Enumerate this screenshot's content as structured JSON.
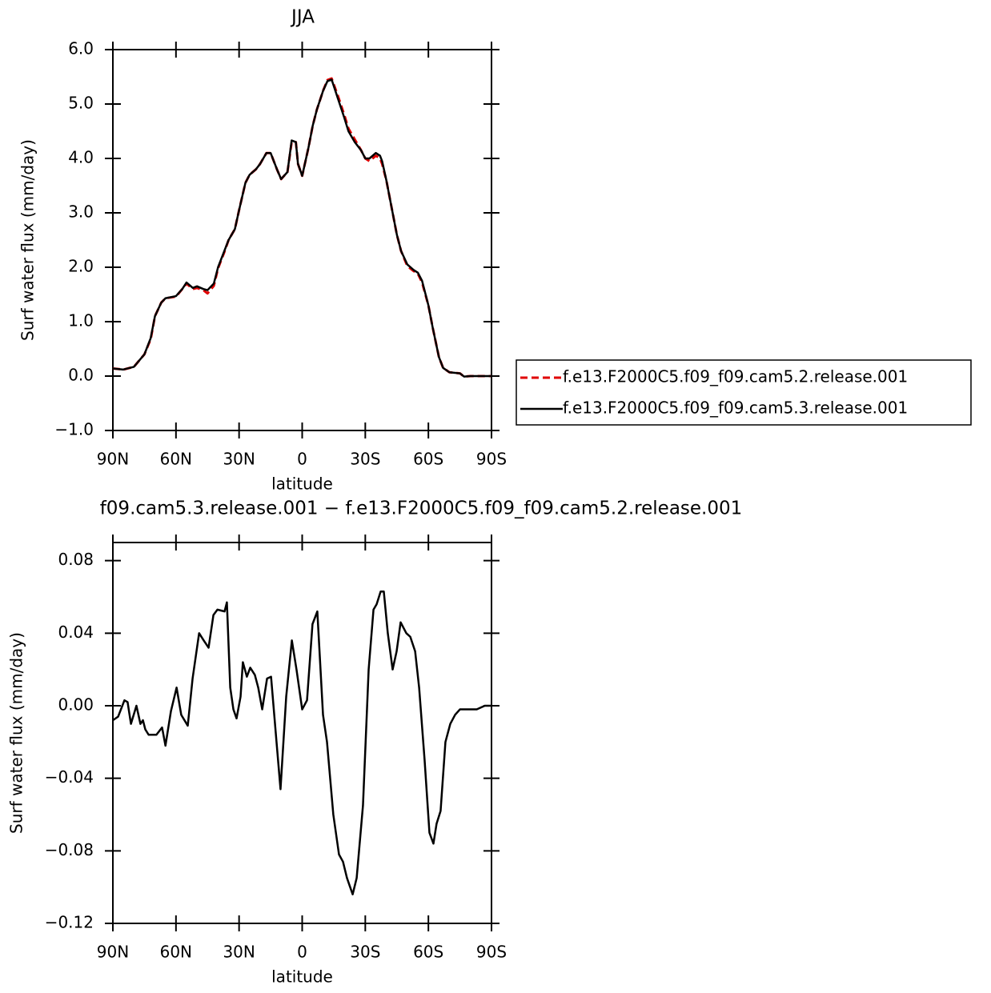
{
  "chart_data": [
    {
      "type": "line",
      "title": "JJA",
      "xlabel": "latitude",
      "ylabel": "Surf water flux (mm/day)",
      "x": [
        90,
        85,
        80,
        75,
        72,
        70,
        67,
        65,
        60,
        57,
        55,
        52,
        50,
        47,
        45,
        42,
        40,
        37,
        35,
        32,
        30,
        27,
        25,
        22,
        20,
        17,
        15,
        12,
        10,
        7,
        5,
        3,
        2,
        0,
        -3,
        -5,
        -7,
        -10,
        -12,
        -14,
        -17,
        -20,
        -22,
        -25,
        -28,
        -30,
        -32,
        -35,
        -37,
        -38,
        -40,
        -42,
        -45,
        -47,
        -50,
        -53,
        -55,
        -57,
        -60,
        -62,
        -65,
        -67,
        -70,
        -75,
        -77,
        -80,
        -85,
        -90
      ],
      "series": [
        {
          "name": "f.e13.F2000C5.f09_f09.cam5.2.release.001",
          "color": "#e00000",
          "dashed": true,
          "values": [
            0.14,
            0.12,
            0.17,
            0.4,
            0.68,
            1.1,
            1.35,
            1.43,
            1.46,
            1.6,
            1.7,
            1.6,
            1.62,
            1.58,
            1.52,
            1.66,
            1.98,
            2.28,
            2.5,
            2.7,
            3.05,
            3.55,
            3.7,
            3.8,
            3.9,
            4.1,
            4.1,
            3.8,
            3.62,
            3.75,
            4.3,
            4.3,
            3.9,
            3.68,
            4.2,
            4.6,
            4.9,
            5.25,
            5.44,
            5.47,
            5.15,
            4.8,
            4.55,
            4.35,
            4.15,
            4.0,
            3.95,
            4.05,
            4.0,
            3.9,
            3.6,
            3.2,
            2.6,
            2.3,
            2.02,
            1.93,
            1.88,
            1.72,
            1.3,
            0.9,
            0.35,
            0.15,
            0.07,
            0.05,
            -0.01,
            0.0,
            0.0,
            0.0
          ]
        },
        {
          "name": "f.e13.F2000C5.f09_f09.cam5.3.release.001",
          "color": "#000000",
          "dashed": false,
          "values": [
            0.14,
            0.12,
            0.17,
            0.4,
            0.7,
            1.1,
            1.35,
            1.43,
            1.47,
            1.6,
            1.72,
            1.62,
            1.65,
            1.6,
            1.58,
            1.7,
            2.0,
            2.3,
            2.5,
            2.7,
            3.05,
            3.55,
            3.7,
            3.8,
            3.9,
            4.1,
            4.1,
            3.8,
            3.62,
            3.75,
            4.33,
            4.3,
            3.9,
            3.68,
            4.2,
            4.6,
            4.9,
            5.25,
            5.42,
            5.45,
            5.1,
            4.75,
            4.5,
            4.3,
            4.15,
            4.0,
            4.0,
            4.1,
            4.05,
            3.95,
            3.6,
            3.2,
            2.6,
            2.3,
            2.05,
            1.95,
            1.9,
            1.75,
            1.3,
            0.9,
            0.35,
            0.15,
            0.07,
            0.05,
            -0.01,
            0.0,
            0.0,
            0.0
          ]
        }
      ],
      "xlim": [
        90,
        -90
      ],
      "xticks": [
        {
          "value": 90,
          "label": "90N"
        },
        {
          "value": 60,
          "label": "60N"
        },
        {
          "value": 30,
          "label": "30N"
        },
        0,
        {
          "value": -30,
          "label": "30S"
        },
        {
          "value": -60,
          "label": "60S"
        },
        {
          "value": -90,
          "label": "90S"
        }
      ],
      "ylim": [
        -1,
        6
      ],
      "yticks": [
        {
          "value": -1,
          "label": "−1.0"
        },
        {
          "value": 0,
          "label": "0.0"
        },
        {
          "value": 1,
          "label": "1.0"
        },
        {
          "value": 2,
          "label": "2.0"
        },
        {
          "value": 3,
          "label": "3.0"
        },
        {
          "value": 4,
          "label": "4.0"
        },
        {
          "value": 5,
          "label": "5.0"
        },
        {
          "value": 6,
          "label": "6.0"
        }
      ],
      "legend": "right"
    },
    {
      "type": "line",
      "title": "f09.cam5.3.release.001 − f.e13.F2000C5.f09_f09.cam5.2.release.001",
      "xlabel": "latitude",
      "ylabel": "Surf water flux (mm/day)",
      "x": [
        90,
        87.5,
        84.5,
        83,
        81.4,
        78.8,
        76.9,
        75.7,
        74.6,
        73,
        69.3,
        66.6,
        65,
        62.4,
        59.7,
        57.5,
        54.4,
        52.1,
        49,
        46.8,
        44.5,
        42.2,
        40.3,
        36.9,
        35.8,
        34.2,
        32.7,
        31.2,
        29.3,
        28.2,
        26.3,
        24.7,
        22.5,
        20.9,
        19,
        16.7,
        14.8,
        12.2,
        10.3,
        7.6,
        4.9,
        2.7,
        0,
        -2.3,
        -4.9,
        -7.2,
        -9.9,
        -11.8,
        -14.8,
        -17.5,
        -19.4,
        -21.3,
        -22.8,
        -24,
        -25.9,
        -28.9,
        -31.6,
        -33.9,
        -35.4,
        -37.3,
        -38.8,
        -40.7,
        -43,
        -44.9,
        -46.8,
        -49.5,
        -51.4,
        -53.7,
        -55.6,
        -58.2,
        -60.5,
        -62.4,
        -63.9,
        -65.8,
        -68.1,
        -70.4,
        -72.7,
        -75,
        -78,
        -83,
        -86.8,
        -90
      ],
      "series": [
        {
          "color": "#000000",
          "dashed": false,
          "values": [
            -0.008,
            -0.006,
            0.003,
            0.002,
            -0.01,
            0.0,
            -0.01,
            -0.008,
            -0.013,
            -0.016,
            -0.016,
            -0.012,
            -0.022,
            -0.003,
            0.01,
            -0.005,
            -0.011,
            0.015,
            0.04,
            0.036,
            0.032,
            0.05,
            0.053,
            0.052,
            0.057,
            0.01,
            -0.002,
            -0.007,
            0.005,
            0.024,
            0.016,
            0.021,
            0.017,
            0.01,
            -0.002,
            0.015,
            0.016,
            -0.02,
            -0.046,
            0.005,
            0.036,
            0.02,
            -0.002,
            0.003,
            0.045,
            0.052,
            -0.005,
            -0.02,
            -0.06,
            -0.082,
            -0.086,
            -0.095,
            -0.1,
            -0.104,
            -0.095,
            -0.055,
            0.02,
            0.053,
            0.056,
            0.063,
            0.063,
            0.04,
            0.02,
            0.03,
            0.046,
            0.04,
            0.038,
            0.03,
            0.01,
            -0.03,
            -0.07,
            -0.076,
            -0.065,
            -0.058,
            -0.02,
            -0.01,
            -0.005,
            -0.002,
            -0.002,
            -0.002,
            0.0,
            0.0
          ]
        }
      ],
      "xlim": [
        90,
        -90
      ],
      "xticks": [
        {
          "value": 90,
          "label": "90N"
        },
        {
          "value": 60,
          "label": "60N"
        },
        {
          "value": 30,
          "label": "30N"
        },
        0,
        {
          "value": -30,
          "label": "30S"
        },
        {
          "value": -60,
          "label": "60S"
        },
        {
          "value": -90,
          "label": "90S"
        }
      ],
      "ylim": [
        -0.12,
        0.09
      ],
      "yticks": [
        {
          "value": -0.12,
          "label": "−0.12"
        },
        {
          "value": -0.08,
          "label": "−0.08"
        },
        {
          "value": -0.04,
          "label": "−0.04"
        },
        {
          "value": 0,
          "label": "0.00"
        },
        {
          "value": 0.04,
          "label": "0.04"
        },
        {
          "value": 0.08,
          "label": "0.08"
        }
      ]
    }
  ]
}
